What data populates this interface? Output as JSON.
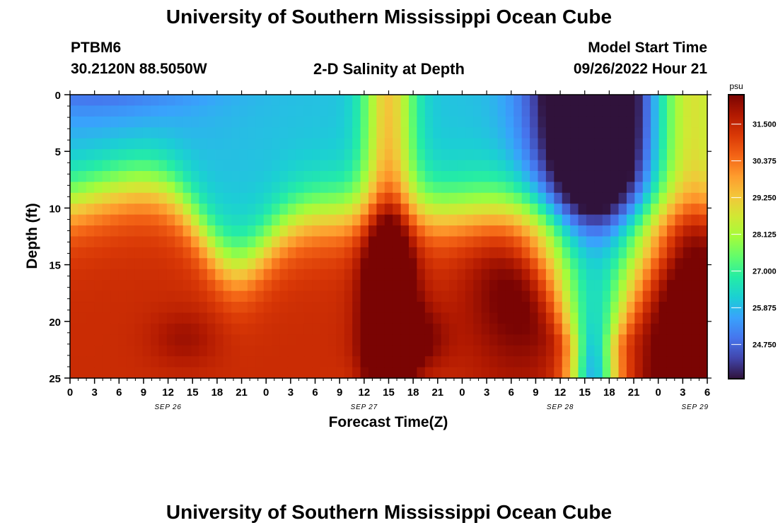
{
  "header": {
    "title": "University of Southern Mississippi Ocean Cube",
    "station": "PTBM6",
    "coords": "30.2120N  88.5050W",
    "chart_title": "2-D Salinity at Depth",
    "model_start_label": "Model Start Time",
    "model_start_value": "09/26/2022 Hour 21",
    "footer_title": "University of Southern Mississippi Ocean Cube"
  },
  "chart_data": {
    "type": "heatmap",
    "title": "2-D Salinity at Depth",
    "xlabel": "Forecast Time(Z)",
    "ylabel": "Depth (ft)",
    "x_ticks": [
      "0",
      "3",
      "6",
      "9",
      "12",
      "15",
      "18",
      "21",
      "0",
      "3",
      "6",
      "9",
      "12",
      "15",
      "18",
      "21",
      "0",
      "3",
      "6",
      "9",
      "12",
      "15",
      "18",
      "21",
      "0",
      "3",
      "6"
    ],
    "x_day_labels": [
      "SEP 26",
      "SEP 27",
      "SEP 28",
      "SEP 29"
    ],
    "y_ticks": [
      "0",
      "5",
      "10",
      "15",
      "20",
      "25"
    ],
    "ylim": [
      0,
      25
    ],
    "y_inverted": true,
    "colorbar": {
      "unit": "psu",
      "ticks": [
        "31.500",
        "30.375",
        "29.250",
        "28.125",
        "27.000",
        "25.875",
        "24.750"
      ],
      "range": [
        23.7,
        32.4
      ],
      "colors": [
        "#30123b",
        "#4145ab",
        "#4675ed",
        "#39a2fc",
        "#1bcfd4",
        "#24eca6",
        "#61fc6c",
        "#a4fc3b",
        "#d1e834",
        "#f3c63a",
        "#fe9b2d",
        "#f36315",
        "#d93806",
        "#b11901",
        "#7a0403"
      ]
    },
    "time_range_hours": [
      0,
      78
    ],
    "depth_range_ft": [
      0,
      25
    ]
  }
}
